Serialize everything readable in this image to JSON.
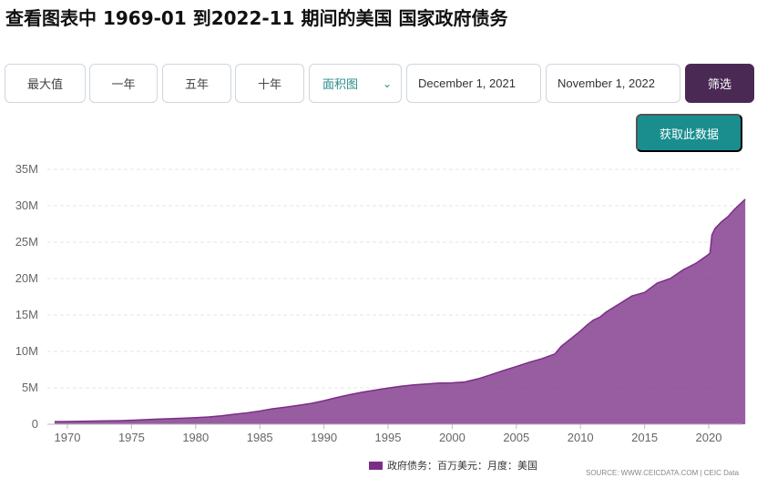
{
  "page": {
    "title": "查看图表中 1969-01 到2022-11 期间的美国 国家政府债务"
  },
  "toolbar": {
    "range_buttons": [
      "最大值",
      "一年",
      "五年",
      "十年"
    ],
    "chart_type_select": "面积图",
    "start_date": "December 1, 2021",
    "end_date": "November 1, 2022",
    "filter_label": "筛选",
    "get_data_label": "获取此数据"
  },
  "chart_data": {
    "type": "area",
    "title": "",
    "xlabel": "",
    "ylabel": "",
    "x_ticks": [
      "1970",
      "1975",
      "1980",
      "1985",
      "1990",
      "1995",
      "2000",
      "2005",
      "2010",
      "2015",
      "2020"
    ],
    "y_ticks": [
      "0",
      "5M",
      "10M",
      "15M",
      "20M",
      "25M",
      "30M",
      "35M"
    ],
    "xlim": [
      1969.0,
      2023.0
    ],
    "ylim": [
      0,
      35000000
    ],
    "grid": true,
    "legend_position": "bottom",
    "color": "#7b2e86",
    "series": [
      {
        "name": "政府债务：百万美元：月度：美国",
        "x": [
          1969.0,
          1970,
          1971,
          1972,
          1973,
          1974,
          1975,
          1976,
          1977,
          1978,
          1979,
          1980,
          1981,
          1982,
          1983,
          1984,
          1985,
          1986,
          1987,
          1988,
          1989,
          1990,
          1991,
          1992,
          1993,
          1994,
          1995,
          1996,
          1997,
          1998,
          1999,
          2000,
          2001,
          2002,
          2003,
          2004,
          2005,
          2006,
          2007,
          2008,
          2008.5,
          2009,
          2009.5,
          2010,
          2010.5,
          2011,
          2011.5,
          2012,
          2013,
          2014,
          2015,
          2016,
          2017,
          2018,
          2019,
          2019.9,
          2020.1,
          2020.25,
          2020.5,
          2021,
          2021.5,
          2022,
          2022.85
        ],
        "values": [
          360000,
          380000,
          410000,
          440000,
          470000,
          490000,
          540000,
          620000,
          700000,
          770000,
          830000,
          910000,
          1000000,
          1150000,
          1380000,
          1570000,
          1820000,
          2130000,
          2350000,
          2600000,
          2860000,
          3230000,
          3670000,
          4060000,
          4410000,
          4690000,
          4970000,
          5220000,
          5410000,
          5530000,
          5660000,
          5680000,
          5810000,
          6230000,
          6790000,
          7380000,
          7930000,
          8510000,
          9010000,
          9650000,
          10700000,
          11400000,
          12100000,
          12800000,
          13600000,
          14300000,
          14700000,
          15400000,
          16500000,
          17600000,
          18100000,
          19400000,
          20000000,
          21200000,
          22100000,
          23200000,
          23500000,
          26000000,
          26900000,
          27800000,
          28500000,
          29500000,
          30900000
        ]
      }
    ]
  },
  "legend": {
    "label": "政府债务：百万美元：月度：美国"
  },
  "source": {
    "text": "SOURCE: WWW.CEICDATA.COM | CEIC Data"
  }
}
